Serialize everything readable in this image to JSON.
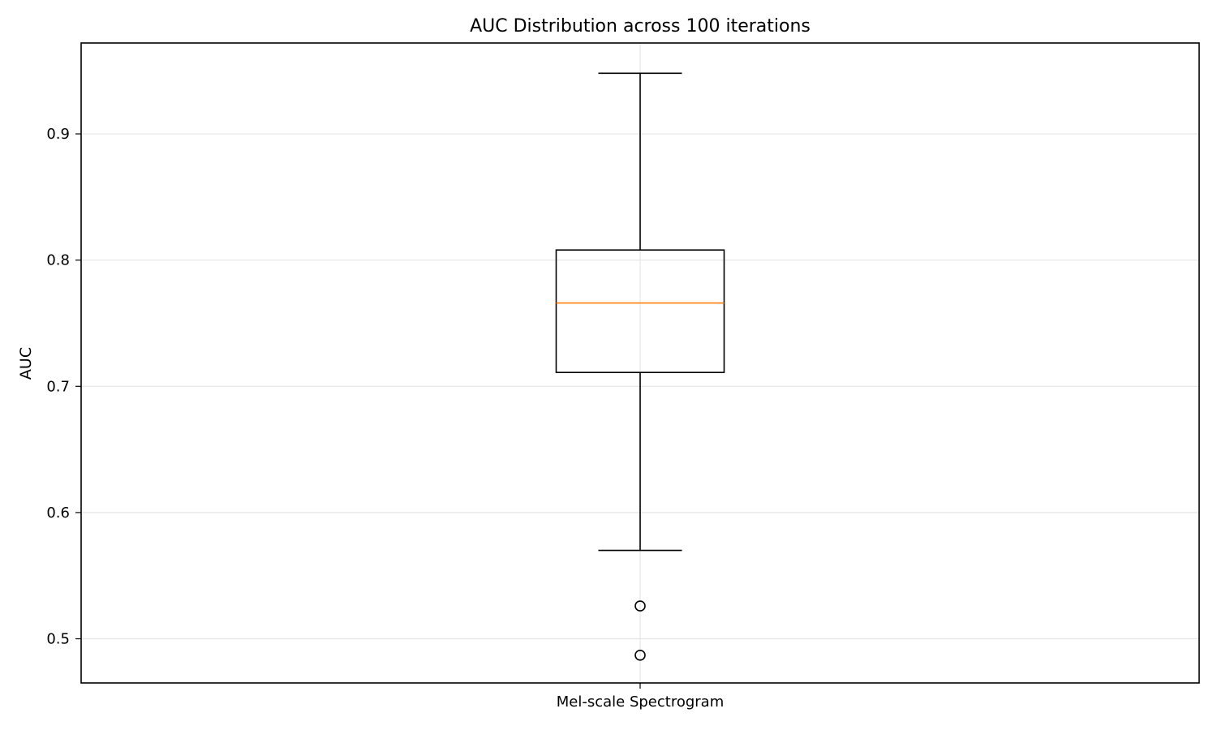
{
  "chart_data": {
    "type": "box",
    "title": "AUC Distribution across 100 iterations",
    "xlabel": "",
    "ylabel": "AUC",
    "categories": [
      "Mel-scale Spectrogram"
    ],
    "ylim": [
      0.465,
      0.972
    ],
    "yticks": [
      0.5,
      0.6,
      0.7,
      0.8,
      0.9
    ],
    "ytick_labels": [
      "0.5",
      "0.6",
      "0.7",
      "0.8",
      "0.9"
    ],
    "grid": true,
    "boxes": [
      {
        "category": "Mel-scale Spectrogram",
        "whisker_low": 0.57,
        "q1": 0.711,
        "median": 0.766,
        "q3": 0.808,
        "whisker_high": 0.948,
        "outliers": [
          0.526,
          0.487
        ]
      }
    ],
    "colors": {
      "box": "#000000",
      "median": "#ff7f0e",
      "grid": "#e5e5e5",
      "outlier_edge": "#000000"
    }
  }
}
